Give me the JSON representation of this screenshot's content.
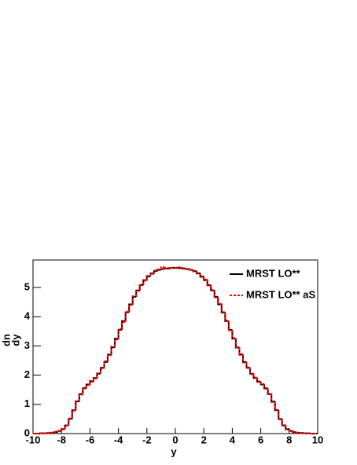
{
  "chart_data": {
    "type": "histogram",
    "xlabel": "y",
    "ylabel": {
      "numerator": "dn",
      "denominator": "dy"
    },
    "bins": [
      -10,
      -9.75,
      -9.5,
      -9.25,
      -9,
      -8.75,
      -8.5,
      -8.25,
      -8,
      -7.75,
      -7.5,
      -7.25,
      -7,
      -6.75,
      -6.5,
      -6.25,
      -6,
      -5.75,
      -5.5,
      -5.25,
      -5,
      -4.75,
      -4.5,
      -4.25,
      -4,
      -3.75,
      -3.5,
      -3.25,
      -3,
      -2.75,
      -2.5,
      -2.25,
      -2,
      -1.75,
      -1.5,
      -1.25,
      -1,
      -0.75,
      -0.5,
      -0.25,
      0,
      0.25,
      0.5,
      0.75,
      1,
      1.25,
      1.5,
      1.75,
      2,
      2.25,
      2.5,
      2.75,
      3,
      3.25,
      3.5,
      3.75,
      4,
      4.25,
      4.5,
      4.75,
      5,
      5.25,
      5.5,
      5.75,
      6,
      6.25,
      6.5,
      6.75,
      7,
      7.25,
      7.5,
      7.75,
      8,
      8.25,
      8.5,
      8.75,
      9,
      9.25,
      9.5,
      9.75,
      10
    ],
    "series": [
      {
        "name": "MRST LO**",
        "color": "#000000",
        "dash": false,
        "values": [
          0.0,
          0.0,
          0.01,
          0.01,
          0.02,
          0.03,
          0.05,
          0.09,
          0.15,
          0.28,
          0.5,
          0.8,
          1.1,
          1.35,
          1.55,
          1.68,
          1.78,
          1.9,
          2.05,
          2.25,
          2.45,
          2.7,
          2.95,
          3.25,
          3.55,
          3.85,
          4.15,
          4.42,
          4.68,
          4.9,
          5.08,
          5.25,
          5.38,
          5.48,
          5.56,
          5.6,
          5.63,
          5.65,
          5.66,
          5.67,
          5.67,
          5.66,
          5.65,
          5.63,
          5.6,
          5.56,
          5.48,
          5.38,
          5.25,
          5.08,
          4.9,
          4.68,
          4.42,
          4.15,
          3.85,
          3.55,
          3.25,
          2.95,
          2.7,
          2.45,
          2.25,
          2.05,
          1.9,
          1.78,
          1.68,
          1.55,
          1.35,
          1.1,
          0.8,
          0.5,
          0.28,
          0.15,
          0.09,
          0.05,
          0.03,
          0.02,
          0.01,
          0.01,
          0.0,
          0.0
        ]
      },
      {
        "name": "MRST LO** aS",
        "color": "#ff0000",
        "dash": true,
        "values": [
          0.0,
          0.0,
          0.01,
          0.01,
          0.02,
          0.03,
          0.06,
          0.08,
          0.16,
          0.27,
          0.52,
          0.78,
          1.12,
          1.33,
          1.57,
          1.66,
          1.8,
          1.88,
          2.07,
          2.22,
          2.48,
          2.67,
          2.98,
          3.22,
          3.58,
          3.82,
          4.18,
          4.4,
          4.7,
          4.88,
          5.1,
          5.23,
          5.4,
          5.46,
          5.58,
          5.62,
          5.7,
          5.66,
          5.64,
          5.68,
          5.66,
          5.69,
          5.64,
          5.62,
          5.61,
          5.54,
          5.5,
          5.36,
          5.27,
          5.06,
          4.92,
          4.66,
          4.44,
          4.13,
          3.87,
          3.53,
          3.27,
          2.93,
          2.72,
          2.43,
          2.27,
          2.03,
          1.92,
          1.76,
          1.7,
          1.53,
          1.37,
          1.08,
          0.82,
          0.48,
          0.3,
          0.14,
          0.1,
          0.04,
          0.03,
          0.02,
          0.01,
          0.01,
          0.0,
          0.0
        ]
      }
    ],
    "xlim": [
      -10,
      10
    ],
    "xticks": [
      -10,
      -8,
      -6,
      -4,
      -2,
      0,
      2,
      4,
      6,
      8,
      10
    ],
    "ylim": [
      0,
      5.94
    ],
    "yticks": [
      0,
      1,
      2,
      3,
      4,
      5
    ],
    "legend": "top-right"
  }
}
